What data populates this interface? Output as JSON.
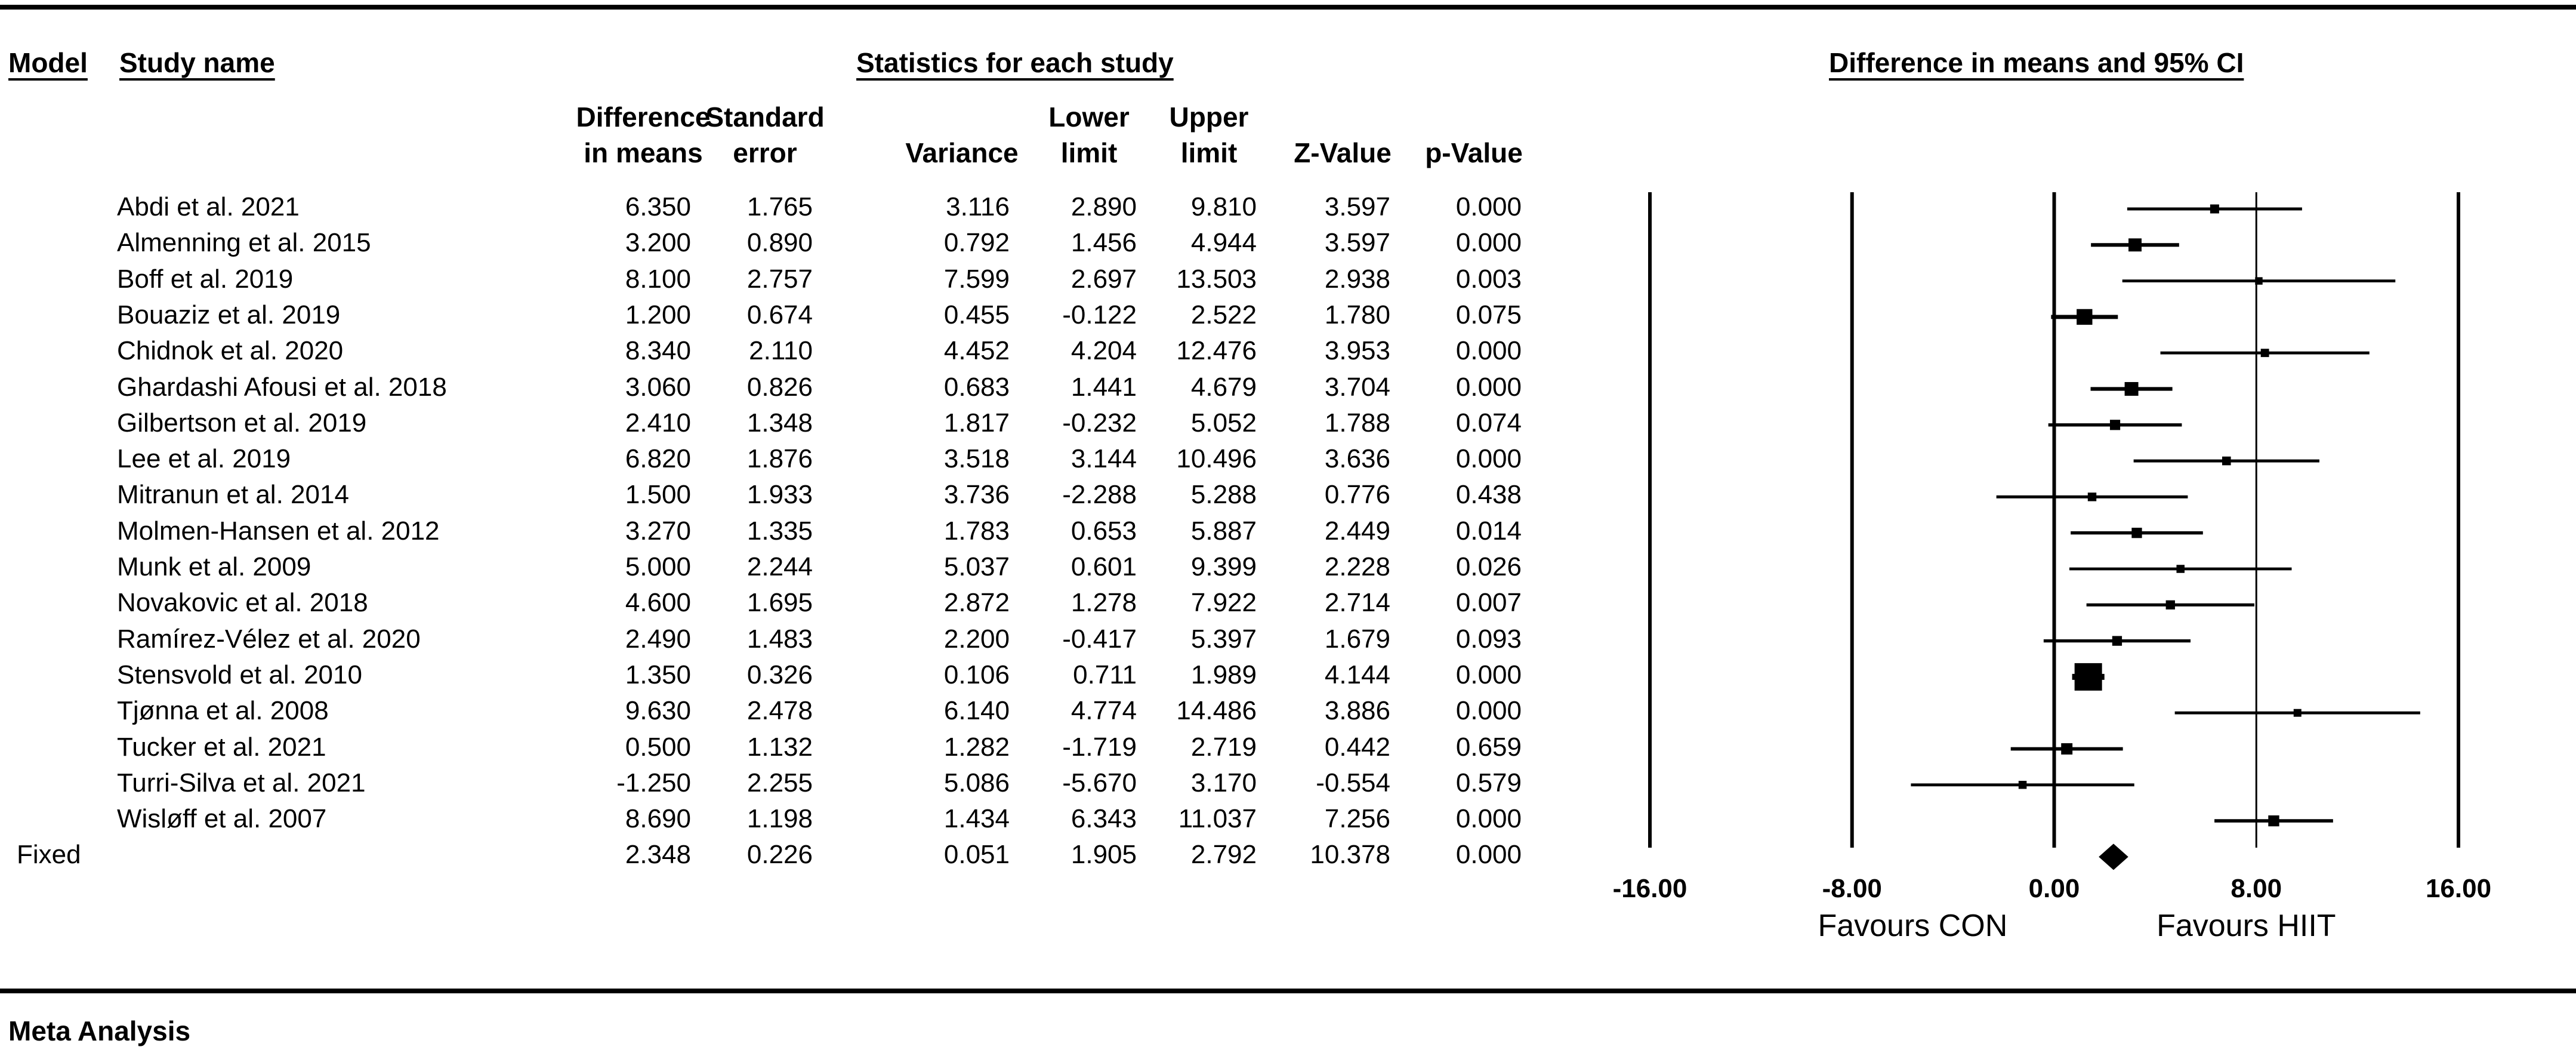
{
  "headers": {
    "model": "Model",
    "study_name": "Study name",
    "statistics": "Statistics for each study",
    "ci": "Difference in means and 95% CI"
  },
  "columns": [
    {
      "key": "diff",
      "label": "Difference\nin means"
    },
    {
      "key": "se",
      "label": "Standard\nerror"
    },
    {
      "key": "var",
      "label": "Variance"
    },
    {
      "key": "lower",
      "label": "Lower\nlimit"
    },
    {
      "key": "upper",
      "label": "Upper\nlimit"
    },
    {
      "key": "z",
      "label": "Z-Value"
    },
    {
      "key": "p",
      "label": "p-Value"
    }
  ],
  "rows": [
    {
      "name": "Abdi et al. 2021",
      "diff": "6.350",
      "se": "1.765",
      "var": "3.116",
      "lower": "2.890",
      "upper": "9.810",
      "z": "3.597",
      "p": "0.000"
    },
    {
      "name": "Almenning et al. 2015",
      "diff": "3.200",
      "se": "0.890",
      "var": "0.792",
      "lower": "1.456",
      "upper": "4.944",
      "z": "3.597",
      "p": "0.000"
    },
    {
      "name": "Boff et al. 2019",
      "diff": "8.100",
      "se": "2.757",
      "var": "7.599",
      "lower": "2.697",
      "upper": "13.503",
      "z": "2.938",
      "p": "0.003"
    },
    {
      "name": "Bouaziz et al. 2019",
      "diff": "1.200",
      "se": "0.674",
      "var": "0.455",
      "lower": "-0.122",
      "upper": "2.522",
      "z": "1.780",
      "p": "0.075"
    },
    {
      "name": "Chidnok et al. 2020",
      "diff": "8.340",
      "se": "2.110",
      "var": "4.452",
      "lower": "4.204",
      "upper": "12.476",
      "z": "3.953",
      "p": "0.000"
    },
    {
      "name": "Ghardashi Afousi et al. 2018",
      "diff": "3.060",
      "se": "0.826",
      "var": "0.683",
      "lower": "1.441",
      "upper": "4.679",
      "z": "3.704",
      "p": "0.000"
    },
    {
      "name": "Gilbertson et al. 2019",
      "diff": "2.410",
      "se": "1.348",
      "var": "1.817",
      "lower": "-0.232",
      "upper": "5.052",
      "z": "1.788",
      "p": "0.074"
    },
    {
      "name": "Lee et al. 2019",
      "diff": "6.820",
      "se": "1.876",
      "var": "3.518",
      "lower": "3.144",
      "upper": "10.496",
      "z": "3.636",
      "p": "0.000"
    },
    {
      "name": "Mitranun et al. 2014",
      "diff": "1.500",
      "se": "1.933",
      "var": "3.736",
      "lower": "-2.288",
      "upper": "5.288",
      "z": "0.776",
      "p": "0.438"
    },
    {
      "name": "Molmen-Hansen et al. 2012",
      "diff": "3.270",
      "se": "1.335",
      "var": "1.783",
      "lower": "0.653",
      "upper": "5.887",
      "z": "2.449",
      "p": "0.014"
    },
    {
      "name": "Munk et al. 2009",
      "diff": "5.000",
      "se": "2.244",
      "var": "5.037",
      "lower": "0.601",
      "upper": "9.399",
      "z": "2.228",
      "p": "0.026"
    },
    {
      "name": "Novakovic et al. 2018",
      "diff": "4.600",
      "se": "1.695",
      "var": "2.872",
      "lower": "1.278",
      "upper": "7.922",
      "z": "2.714",
      "p": "0.007"
    },
    {
      "name": "Ramírez-Vélez et al. 2020",
      "diff": "2.490",
      "se": "1.483",
      "var": "2.200",
      "lower": "-0.417",
      "upper": "5.397",
      "z": "1.679",
      "p": "0.093"
    },
    {
      "name": "Stensvold et al. 2010",
      "diff": "1.350",
      "se": "0.326",
      "var": "0.106",
      "lower": "0.711",
      "upper": "1.989",
      "z": "4.144",
      "p": "0.000"
    },
    {
      "name": "Tjønna et al. 2008",
      "diff": "9.630",
      "se": "2.478",
      "var": "6.140",
      "lower": "4.774",
      "upper": "14.486",
      "z": "3.886",
      "p": "0.000"
    },
    {
      "name": "Tucker et al. 2021",
      "diff": "0.500",
      "se": "1.132",
      "var": "1.282",
      "lower": "-1.719",
      "upper": "2.719",
      "z": "0.442",
      "p": "0.659"
    },
    {
      "name": "Turri-Silva et al. 2021",
      "diff": "-1.250",
      "se": "2.255",
      "var": "5.086",
      "lower": "-5.670",
      "upper": "3.170",
      "z": "-0.554",
      "p": "0.579"
    },
    {
      "name": "Wisløff et al. 2007",
      "diff": "8.690",
      "se": "1.198",
      "var": "1.434",
      "lower": "6.343",
      "upper": "11.037",
      "z": "7.256",
      "p": "0.000"
    }
  ],
  "summary": {
    "model": "Fixed",
    "diff": "2.348",
    "se": "0.226",
    "var": "0.051",
    "lower": "1.905",
    "upper": "2.792",
    "z": "10.378",
    "p": "0.000"
  },
  "footer": "Meta Analysis",
  "chart_data": {
    "type": "forest",
    "title": "Difference in means and 95% CI",
    "xlim": [
      -16,
      16
    ],
    "ticks": [
      "-16.00",
      "-8.00",
      "0.00",
      "8.00",
      "16.00"
    ],
    "reference_lines_at": [
      -16,
      -8,
      0,
      8,
      16
    ],
    "left_label": "Favours CON",
    "right_label": "Favours HIIT",
    "studies": [
      {
        "name": "Abdi et al. 2021",
        "est": 6.35,
        "lower": 2.89,
        "upper": 9.81,
        "weight_var": 3.116
      },
      {
        "name": "Almenning et al. 2015",
        "est": 3.2,
        "lower": 1.456,
        "upper": 4.944,
        "weight_var": 0.792
      },
      {
        "name": "Boff et al. 2019",
        "est": 8.1,
        "lower": 2.697,
        "upper": 13.503,
        "weight_var": 7.599
      },
      {
        "name": "Bouaziz et al. 2019",
        "est": 1.2,
        "lower": -0.122,
        "upper": 2.522,
        "weight_var": 0.455
      },
      {
        "name": "Chidnok et al. 2020",
        "est": 8.34,
        "lower": 4.204,
        "upper": 12.476,
        "weight_var": 4.452
      },
      {
        "name": "Ghardashi Afousi et al. 2018",
        "est": 3.06,
        "lower": 1.441,
        "upper": 4.679,
        "weight_var": 0.683
      },
      {
        "name": "Gilbertson et al. 2019",
        "est": 2.41,
        "lower": -0.232,
        "upper": 5.052,
        "weight_var": 1.817
      },
      {
        "name": "Lee et al. 2019",
        "est": 6.82,
        "lower": 3.144,
        "upper": 10.496,
        "weight_var": 3.518
      },
      {
        "name": "Mitranun et al. 2014",
        "est": 1.5,
        "lower": -2.288,
        "upper": 5.288,
        "weight_var": 3.736
      },
      {
        "name": "Molmen-Hansen et al. 2012",
        "est": 3.27,
        "lower": 0.653,
        "upper": 5.887,
        "weight_var": 1.783
      },
      {
        "name": "Munk et al. 2009",
        "est": 5.0,
        "lower": 0.601,
        "upper": 9.399,
        "weight_var": 5.037
      },
      {
        "name": "Novakovic et al. 2018",
        "est": 4.6,
        "lower": 1.278,
        "upper": 7.922,
        "weight_var": 2.872
      },
      {
        "name": "Ramírez-Vélez et al. 2020",
        "est": 2.49,
        "lower": -0.417,
        "upper": 5.397,
        "weight_var": 2.2
      },
      {
        "name": "Stensvold et al. 2010",
        "est": 1.35,
        "lower": 0.711,
        "upper": 1.989,
        "weight_var": 0.106
      },
      {
        "name": "Tjønna et al. 2008",
        "est": 9.63,
        "lower": 4.774,
        "upper": 14.486,
        "weight_var": 6.14
      },
      {
        "name": "Tucker et al. 2021",
        "est": 0.5,
        "lower": -1.719,
        "upper": 2.719,
        "weight_var": 1.282
      },
      {
        "name": "Turri-Silva et al. 2021",
        "est": -1.25,
        "lower": -5.67,
        "upper": 3.17,
        "weight_var": 5.086
      },
      {
        "name": "Wisløff et al. 2007",
        "est": 8.69,
        "lower": 6.343,
        "upper": 11.037,
        "weight_var": 1.434
      }
    ],
    "summary": {
      "name": "Fixed",
      "est": 2.348,
      "lower": 1.905,
      "upper": 2.792
    }
  }
}
